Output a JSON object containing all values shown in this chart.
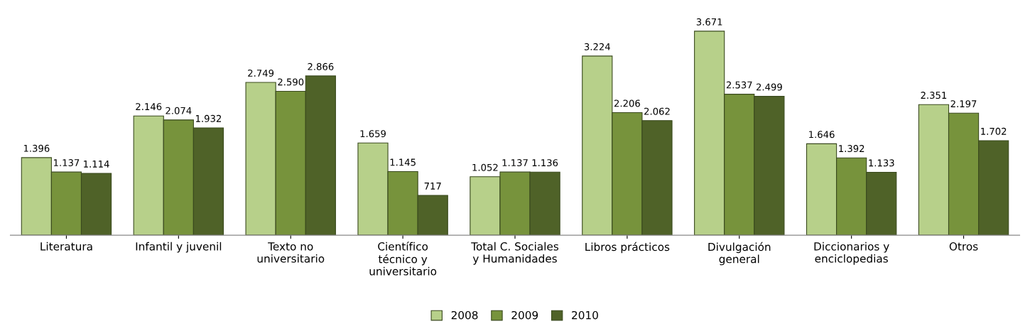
{
  "chart_data": {
    "type": "bar",
    "categories": [
      "Literatura",
      "Infantil y juvenil",
      "Texto no\nuniversitario",
      "Científico\ntécnico y\nuniversitario",
      "Total C. Sociales\ny Humanidades",
      "Libros prácticos",
      "Divulgación\ngeneral",
      "Diccionarios y\nenciclopedias",
      "Otros"
    ],
    "series": [
      {
        "name": "2008",
        "color": "#b7d08a",
        "values": [
          1396,
          2146,
          2749,
          1659,
          1052,
          3224,
          3671,
          1646,
          2351
        ],
        "value_labels": [
          "1.396",
          "2.146",
          "2.749",
          "1.659",
          "1.052",
          "3.224",
          "3.671",
          "1.646",
          "2.351"
        ]
      },
      {
        "name": "2009",
        "color": "#77933c",
        "values": [
          1137,
          2074,
          2590,
          1145,
          1137,
          2206,
          2537,
          1392,
          2197
        ],
        "value_labels": [
          "1.137",
          "2.074",
          "2.590",
          "1.145",
          "1.137",
          "2.206",
          "2.537",
          "1.392",
          "2.197"
        ]
      },
      {
        "name": "2010",
        "color": "#4f6228",
        "values": [
          1114,
          1932,
          2866,
          717,
          1136,
          2062,
          2499,
          1133,
          1702
        ],
        "value_labels": [
          "1.114",
          "1.932",
          "2.866",
          "717",
          "1.136",
          "2.062",
          "2.499",
          "1.133",
          "1.702"
        ]
      }
    ],
    "legend": "bottom",
    "grid": false
  }
}
